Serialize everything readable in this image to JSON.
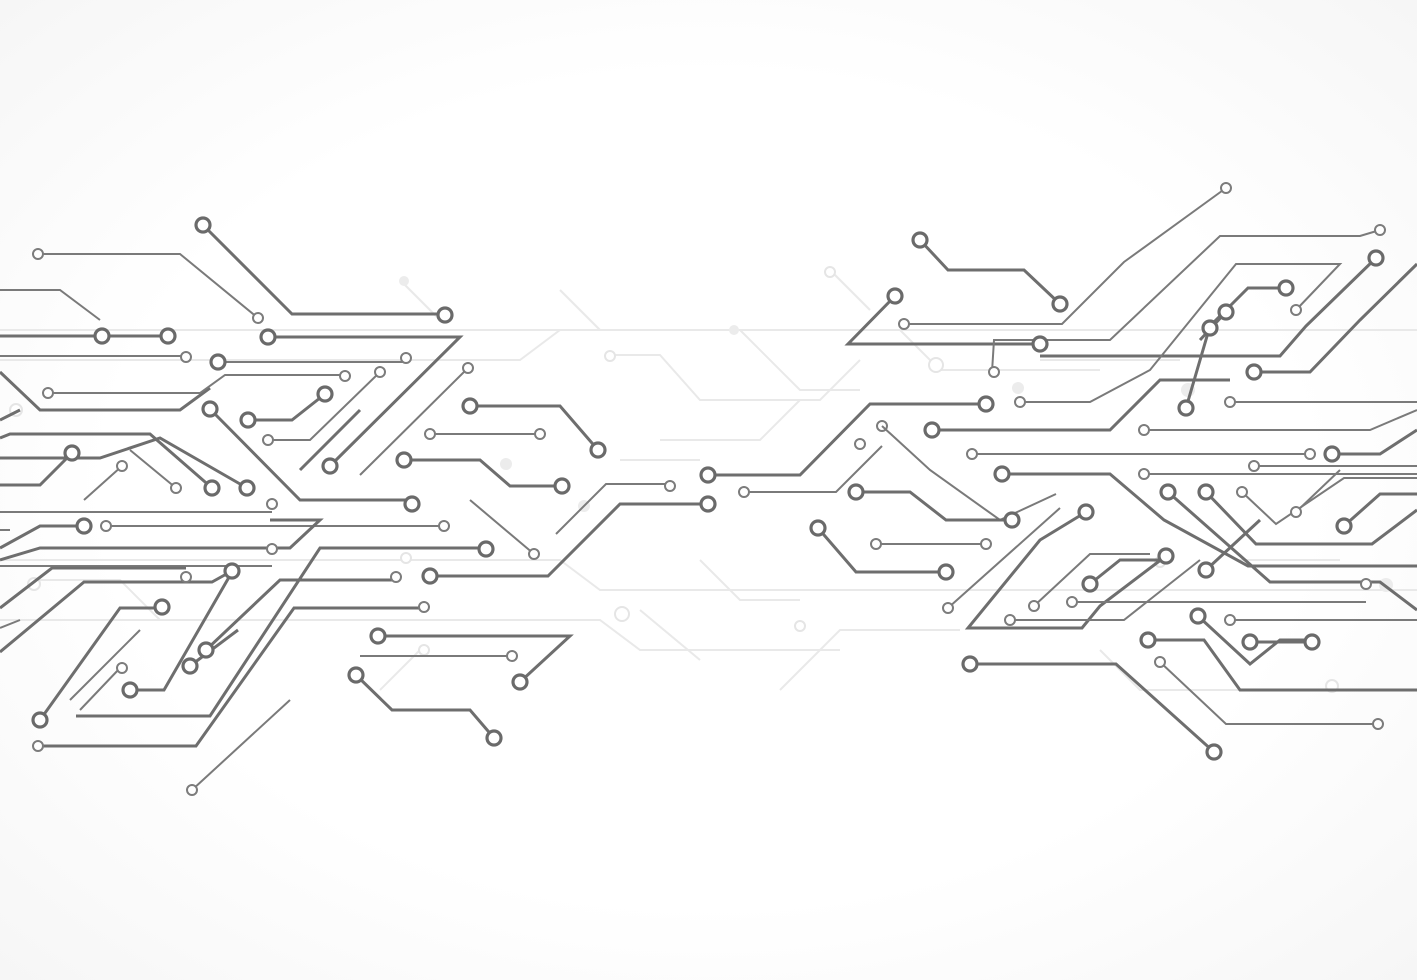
{
  "scene": {
    "description_type": "decorative-circuit-board-background",
    "colors": {
      "background": "#ffffff",
      "trace": "#6e6e6e",
      "faint_trace": "#e9e9e9"
    }
  }
}
